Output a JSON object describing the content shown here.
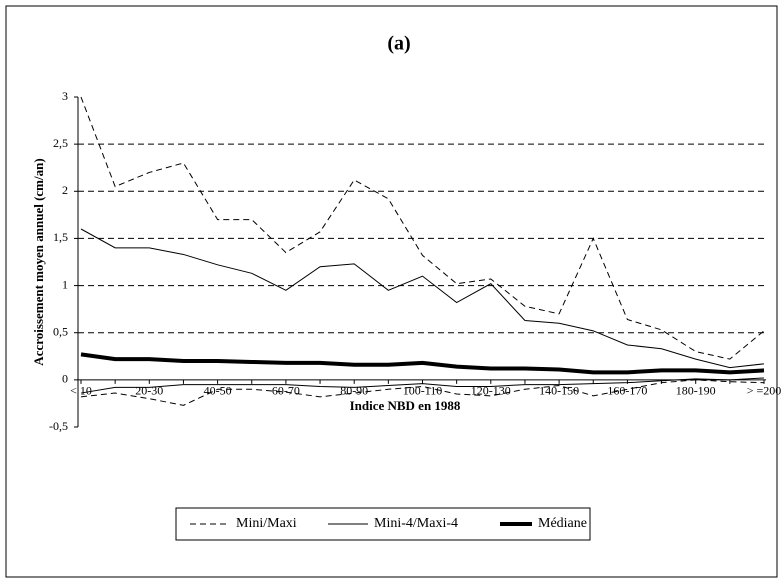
{
  "chart_data": {
    "type": "line",
    "title": "(a)",
    "x_label": "Indice NBD en 1988",
    "y_label": "Accroissement moyen annuel (cm/an)",
    "categories": [
      "< 10",
      null,
      "20-30",
      null,
      "40-50",
      null,
      "60-70",
      null,
      "80-90",
      null,
      "100-110",
      null,
      "120-130",
      null,
      "140-150",
      null,
      "160-170",
      null,
      "180-190",
      null,
      "> =200"
    ],
    "ylim": [
      -0.5,
      3
    ],
    "yticks": [
      {
        "value": -0.5,
        "label": "-0,5"
      },
      0,
      {
        "value": 0.5,
        "label": "0,5"
      },
      1,
      {
        "value": 1.5,
        "label": "1,5"
      },
      2,
      {
        "value": 2.5,
        "label": "2,5"
      },
      3
    ],
    "grid": true,
    "legend": "bottom",
    "series": [
      {
        "name": "Mini/Maxi",
        "color": "#000000",
        "linestyle": "dashed",
        "linewidth": 1,
        "maxi": [
          3.0,
          2.05,
          2.2,
          2.3,
          1.7,
          1.7,
          1.35,
          1.57,
          2.12,
          1.92,
          1.32,
          1.02,
          1.07,
          0.78,
          0.7,
          1.5,
          0.64,
          0.53,
          0.3,
          0.22,
          0.52
        ],
        "mini": [
          -0.18,
          -0.14,
          -0.2,
          -0.27,
          -0.1,
          -0.1,
          -0.13,
          -0.18,
          -0.14,
          -0.1,
          -0.07,
          -0.15,
          -0.17,
          -0.1,
          -0.06,
          -0.17,
          -0.1,
          -0.03,
          0.0,
          -0.02,
          -0.03
        ]
      },
      {
        "name": "Mini-4/Maxi-4",
        "color": "#000000",
        "linestyle": "solid",
        "linewidth": 1,
        "maxi": [
          1.6,
          1.4,
          1.4,
          1.33,
          1.22,
          1.13,
          0.95,
          1.2,
          1.23,
          0.95,
          1.1,
          0.82,
          1.02,
          0.63,
          0.6,
          0.52,
          0.37,
          0.33,
          0.22,
          0.13,
          0.17
        ],
        "mini": [
          -0.14,
          -0.08,
          -0.08,
          -0.05,
          -0.05,
          -0.05,
          -0.05,
          -0.07,
          -0.08,
          -0.06,
          -0.04,
          -0.07,
          -0.07,
          -0.05,
          -0.05,
          -0.04,
          -0.03,
          -0.01,
          0.01,
          0.0,
          0.02
        ]
      },
      {
        "name": "Médiane",
        "color": "#000000",
        "linestyle": "solid",
        "linewidth": 4,
        "values": [
          0.27,
          0.22,
          0.22,
          0.2,
          0.2,
          0.19,
          0.18,
          0.18,
          0.16,
          0.16,
          0.18,
          0.14,
          0.12,
          0.12,
          0.11,
          0.08,
          0.08,
          0.1,
          0.1,
          0.08,
          0.1
        ]
      }
    ]
  }
}
